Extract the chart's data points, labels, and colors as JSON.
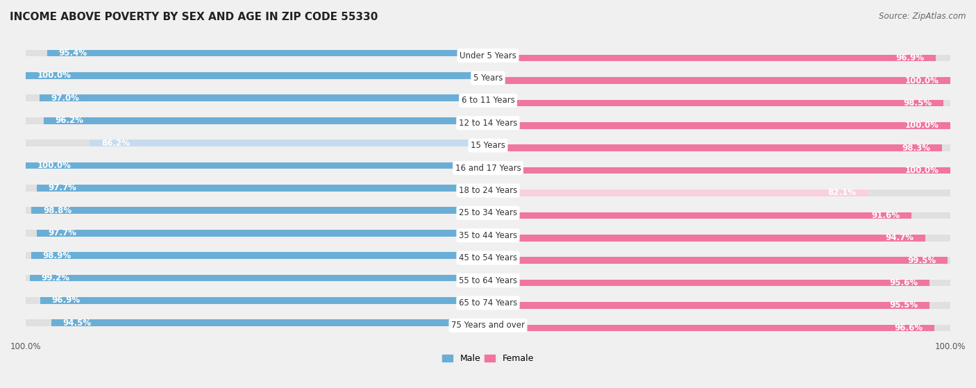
{
  "title": "INCOME ABOVE POVERTY BY SEX AND AGE IN ZIP CODE 55330",
  "source": "Source: ZipAtlas.com",
  "categories": [
    "Under 5 Years",
    "5 Years",
    "6 to 11 Years",
    "12 to 14 Years",
    "15 Years",
    "16 and 17 Years",
    "18 to 24 Years",
    "25 to 34 Years",
    "35 to 44 Years",
    "45 to 54 Years",
    "55 to 64 Years",
    "65 to 74 Years",
    "75 Years and over"
  ],
  "male_values": [
    95.4,
    100.0,
    97.0,
    96.2,
    86.2,
    100.0,
    97.7,
    98.8,
    97.7,
    98.9,
    99.2,
    96.9,
    94.5
  ],
  "female_values": [
    96.9,
    100.0,
    98.5,
    100.0,
    98.3,
    100.0,
    82.1,
    91.6,
    94.7,
    99.5,
    95.6,
    95.5,
    96.6
  ],
  "male_color": "#6aaed6",
  "female_color": "#f075a0",
  "male_light_color": "#c6dcee",
  "female_light_color": "#fad0e0",
  "background_color": "#f0f0f0",
  "bar_bg_color": "#e0e0e0",
  "legend_male": "Male",
  "legend_female": "Female",
  "title_fontsize": 11,
  "source_fontsize": 8.5,
  "label_fontsize": 8.5,
  "category_fontsize": 8.5,
  "bottom_label": "100.0%"
}
